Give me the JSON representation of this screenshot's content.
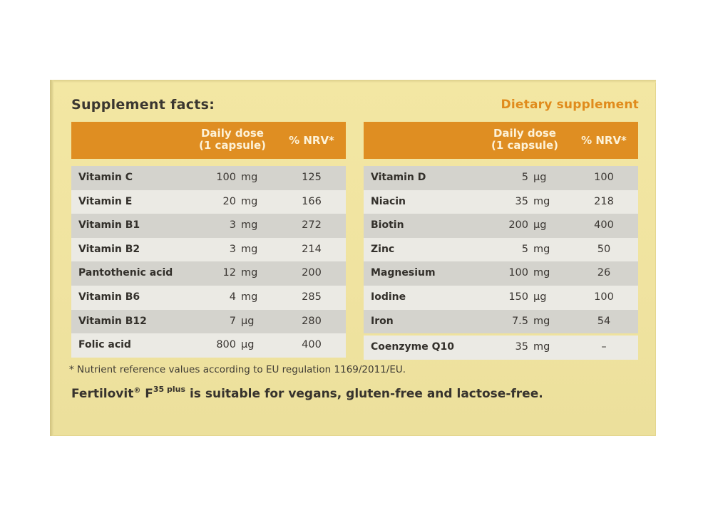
{
  "heading": "Supplement facts:",
  "badge": "Dietary supplement",
  "header": {
    "dose_line1": "Daily dose",
    "dose_line2": "(1 capsule)",
    "nrv": "% NRV*"
  },
  "left_rows": [
    {
      "name": "Vitamin C",
      "amount": "100",
      "unit": "mg",
      "nrv": "125"
    },
    {
      "name": "Vitamin E",
      "amount": "20",
      "unit": "mg",
      "nrv": "166"
    },
    {
      "name": "Vitamin B1",
      "amount": "3",
      "unit": "mg",
      "nrv": "272"
    },
    {
      "name": "Vitamin B2",
      "amount": "3",
      "unit": "mg",
      "nrv": "214"
    },
    {
      "name": "Pantothenic acid",
      "amount": "12",
      "unit": "mg",
      "nrv": "200"
    },
    {
      "name": "Vitamin B6",
      "amount": "4",
      "unit": "mg",
      "nrv": "285"
    },
    {
      "name": "Vitamin B12",
      "amount": "7",
      "unit": "µg",
      "nrv": "280"
    },
    {
      "name": "Folic acid",
      "amount": "800",
      "unit": "µg",
      "nrv": "400"
    }
  ],
  "right_rows": [
    {
      "name": "Vitamin D",
      "amount": "5",
      "unit": "µg",
      "nrv": "100"
    },
    {
      "name": "Niacin",
      "amount": "35",
      "unit": "mg",
      "nrv": "218"
    },
    {
      "name": "Biotin",
      "amount": "200",
      "unit": "µg",
      "nrv": "400"
    },
    {
      "name": "Zinc",
      "amount": "5",
      "unit": "mg",
      "nrv": "50"
    },
    {
      "name": "Magnesium",
      "amount": "100",
      "unit": "mg",
      "nrv": "26"
    },
    {
      "name": "Iodine",
      "amount": "150",
      "unit": "µg",
      "nrv": "100"
    },
    {
      "name": "Iron",
      "amount": "7.5",
      "unit": "mg",
      "nrv": "54"
    }
  ],
  "extra_row": {
    "name": "Coenzyme Q10",
    "amount": "35",
    "unit": "mg",
    "nrv": "–"
  },
  "footnote": "* Nutrient reference values according to EU regulation 1169/2011/EU.",
  "claim": {
    "brand": "Fertilovit",
    "reg": "®",
    "product": "F",
    "product_sup": "35 plus",
    "text": "is suitable for vegans, gluten-free and lactose-free."
  },
  "colors": {
    "box": "#f0e3a0",
    "header": "#df8e22",
    "row_dark": "#d4d3cd",
    "row_light": "#ebeae4",
    "badge": "#e08b1c"
  }
}
